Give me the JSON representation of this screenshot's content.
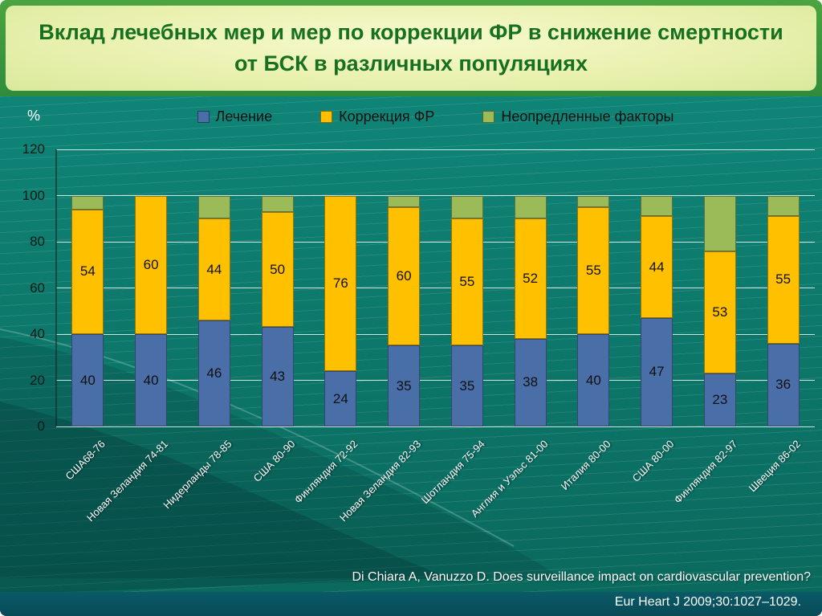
{
  "slide": {
    "title": "Вклад лечебных мер и мер по коррекции ФР в снижение смертности от БСК в различных популяциях",
    "footer": {
      "line1": "Di Chiara A, Vanuzzo D. Does surveillance impact on cardiovascular prevention?",
      "line2": "Eur Heart J 2009;30:1027–1029."
    }
  },
  "colors": {
    "treatment_blue": "#4a6fa8",
    "risk_correction_yellow": "#ffc000",
    "undefined_factors_green": "#9bbb59",
    "background_teal": "#0c7568",
    "frame_green": "#3f9e41",
    "title_band_yellow": "#e8f0ad",
    "title_text_green": "#17701f",
    "bottom_band": "#0a5a68"
  },
  "chart_data": {
    "type": "bar",
    "stacked": true,
    "title": "Вклад лечебных мер и мер по коррекции ФР в снижение смертности от БСК в различных популяциях",
    "xlabel": "",
    "ylabel": "%",
    "ylim": [
      0,
      120
    ],
    "yticks": [
      0,
      20,
      40,
      60,
      80,
      100,
      120
    ],
    "grid": true,
    "legend_position": "top",
    "categories": [
      "США68-76",
      "Новая Зеландия 74-81",
      "Нидерланды 78-85",
      "США 80-90",
      "Финляндия 72-92",
      "Новая Зеландия 82-93",
      "Шотландия 75-94",
      "Англия и Уэльс 81-00",
      "Италия 80-00",
      "США 80-00",
      "Финляндия 82-97",
      "Швеция 86-02"
    ],
    "series": [
      {
        "name": "Лечение",
        "color": "#4a6fa8",
        "labels_shown": true,
        "values": [
          40,
          40,
          46,
          43,
          24,
          35,
          35,
          38,
          40,
          47,
          23,
          36
        ]
      },
      {
        "name": "Коррекция ФР",
        "color": "#ffc000",
        "labels_shown": true,
        "values": [
          54,
          60,
          44,
          50,
          76,
          60,
          55,
          52,
          55,
          44,
          53,
          55
        ]
      },
      {
        "name": "Неопредленные факторы",
        "color": "#9bbb59",
        "labels_shown": false,
        "values": [
          6,
          0,
          10,
          7,
          0,
          5,
          10,
          10,
          5,
          9,
          24,
          9
        ]
      }
    ]
  }
}
